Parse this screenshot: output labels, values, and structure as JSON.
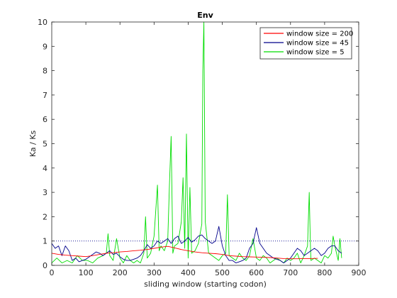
{
  "chart_data": {
    "type": "line",
    "title": "Env",
    "xlabel": "sliding window (starting codon)",
    "ylabel": "Ka / Ks",
    "xlim": [
      0,
      900
    ],
    "ylim": [
      0,
      10
    ],
    "xticks": [
      "0",
      "100",
      "200",
      "300",
      "400",
      "500",
      "600",
      "700",
      "800",
      "900"
    ],
    "yticks": [
      "0",
      "1",
      "2",
      "3",
      "4",
      "5",
      "6",
      "7",
      "8",
      "9",
      "10"
    ],
    "reference_line": {
      "y": 1,
      "style": "dotted"
    },
    "legend_position": "top-right",
    "series": [
      {
        "name": "window size = 200",
        "color": "#ff0000",
        "x": [
          0,
          20,
          40,
          60,
          80,
          100,
          120,
          140,
          160,
          180,
          200,
          220,
          240,
          260,
          280,
          300,
          320,
          340,
          360,
          380,
          400,
          420,
          440,
          460,
          480,
          500,
          520,
          540,
          560,
          580,
          600,
          620,
          640,
          660,
          680,
          700,
          720,
          740,
          760,
          780
        ],
        "y": [
          0.5,
          0.45,
          0.42,
          0.4,
          0.38,
          0.36,
          0.4,
          0.45,
          0.5,
          0.52,
          0.55,
          0.57,
          0.6,
          0.62,
          0.65,
          0.7,
          0.75,
          0.78,
          0.72,
          0.65,
          0.6,
          0.55,
          0.52,
          0.5,
          0.48,
          0.45,
          0.4,
          0.38,
          0.36,
          0.35,
          0.34,
          0.33,
          0.32,
          0.3,
          0.28,
          0.27,
          0.27,
          0.28,
          0.28,
          0.29
        ]
      },
      {
        "name": "window size = 45",
        "color": "#00008b",
        "x": [
          0,
          10,
          20,
          30,
          40,
          50,
          60,
          70,
          80,
          90,
          100,
          110,
          120,
          130,
          140,
          150,
          160,
          170,
          180,
          190,
          200,
          210,
          220,
          230,
          240,
          250,
          260,
          270,
          280,
          290,
          300,
          310,
          320,
          330,
          340,
          350,
          360,
          370,
          380,
          390,
          400,
          410,
          420,
          430,
          440,
          450,
          460,
          470,
          480,
          490,
          500,
          510,
          520,
          530,
          540,
          550,
          560,
          570,
          580,
          590,
          600,
          610,
          620,
          630,
          640,
          650,
          660,
          670,
          680,
          690,
          700,
          710,
          720,
          730,
          740,
          750,
          760,
          770,
          780,
          790,
          800,
          810,
          820,
          830,
          840,
          850
        ],
        "y": [
          0.9,
          0.7,
          0.8,
          0.4,
          0.8,
          0.6,
          0.2,
          0.3,
          0.15,
          0.2,
          0.25,
          0.35,
          0.45,
          0.55,
          0.5,
          0.4,
          0.5,
          0.6,
          0.45,
          0.5,
          0.35,
          0.25,
          0.2,
          0.2,
          0.25,
          0.3,
          0.4,
          0.6,
          0.85,
          0.7,
          0.8,
          1.0,
          0.9,
          1.0,
          1.1,
          0.9,
          1.1,
          1.2,
          0.9,
          1.0,
          1.15,
          0.95,
          1.05,
          1.2,
          1.25,
          1.1,
          1.0,
          0.9,
          1.0,
          1.6,
          0.8,
          0.4,
          0.2,
          0.2,
          0.1,
          0.15,
          0.2,
          0.3,
          0.7,
          0.9,
          1.55,
          0.9,
          0.7,
          0.5,
          0.4,
          0.3,
          0.25,
          0.2,
          0.1,
          0.2,
          0.3,
          0.5,
          0.7,
          0.6,
          0.4,
          0.5,
          0.6,
          0.7,
          0.6,
          0.4,
          0.5,
          0.7,
          0.8,
          0.8,
          0.6,
          0.5
        ]
      },
      {
        "name": "window size = 5",
        "color": "#00dd00",
        "x": [
          0,
          15,
          30,
          45,
          60,
          75,
          90,
          105,
          120,
          135,
          150,
          160,
          165,
          170,
          180,
          190,
          200,
          210,
          220,
          230,
          240,
          250,
          260,
          270,
          275,
          280,
          290,
          300,
          310,
          315,
          320,
          330,
          340,
          345,
          350,
          355,
          360,
          370,
          380,
          385,
          390,
          395,
          400,
          405,
          410,
          420,
          430,
          440,
          443,
          446,
          450,
          460,
          470,
          480,
          490,
          500,
          510,
          515,
          520,
          530,
          540,
          550,
          560,
          570,
          580,
          590,
          600,
          610,
          620,
          630,
          640,
          650,
          660,
          670,
          680,
          690,
          700,
          710,
          720,
          730,
          740,
          750,
          755,
          758,
          760,
          770,
          780,
          790,
          800,
          810,
          820,
          825,
          830,
          840,
          845,
          850
        ],
        "y": [
          0.1,
          0.3,
          0.1,
          0.2,
          0.1,
          0.4,
          0.2,
          0.2,
          0.1,
          0.3,
          0.4,
          0.5,
          1.3,
          0.4,
          0.2,
          1.1,
          0.3,
          0.1,
          0.4,
          0.2,
          0.1,
          0.2,
          0.1,
          0.5,
          2.0,
          0.3,
          0.5,
          1.2,
          3.3,
          0.6,
          0.8,
          0.6,
          1.0,
          3.3,
          5.3,
          0.5,
          0.8,
          0.9,
          1.8,
          3.6,
          0.7,
          5.4,
          0.3,
          3.2,
          0.5,
          0.6,
          0.9,
          1.7,
          8.0,
          10.0,
          1.8,
          0.5,
          0.4,
          0.3,
          0.2,
          0.4,
          0.5,
          2.9,
          0.4,
          0.3,
          0.2,
          0.5,
          0.3,
          0.2,
          0.4,
          1.1,
          0.3,
          0.2,
          0.4,
          0.3,
          0.1,
          0.2,
          0.3,
          0.2,
          0.1,
          0.3,
          0.2,
          0.3,
          0.5,
          0.1,
          0.4,
          0.8,
          3.0,
          1.0,
          0.2,
          0.3,
          0.2,
          0.1,
          0.4,
          0.3,
          0.5,
          1.2,
          0.8,
          0.2,
          1.1,
          0.3
        ]
      }
    ]
  }
}
